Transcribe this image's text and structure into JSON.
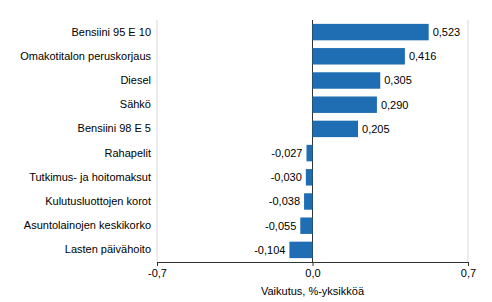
{
  "chart_data": {
    "type": "bar",
    "orientation": "horizontal",
    "categories": [
      "Bensiini 95 E 10",
      "Omakotitalon peruskorjaus",
      "Diesel",
      "Sähkö",
      "Bensiini 98 E 5",
      "Rahapelit",
      "Tutkimus- ja hoitomaksut",
      "Kulutusluottojen korot",
      "Asuntolainojen keskikorko",
      "Lasten päivähoito"
    ],
    "values": [
      0.523,
      0.416,
      0.305,
      0.29,
      0.205,
      -0.027,
      -0.03,
      -0.038,
      -0.055,
      -0.104
    ],
    "value_labels": [
      "0,523",
      "0,416",
      "0,305",
      "0,290",
      "0,205",
      "-0,027",
      "-0,030",
      "-0,038",
      "-0,055",
      "-0,104"
    ],
    "data_labels": true,
    "color": "#1f6eb4",
    "x_label": "Vaikutus, %-yksikköä",
    "xlim": [
      -0.7,
      0.7
    ],
    "xticks": [
      {
        "value": -0.7,
        "label": "-0,7"
      },
      {
        "value": 0,
        "label": "0,0"
      },
      {
        "value": 0.7,
        "label": "0,7"
      }
    ],
    "grid": true
  }
}
